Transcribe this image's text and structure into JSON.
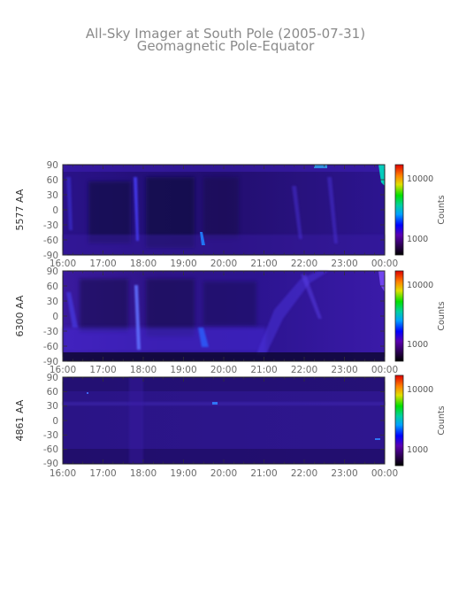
{
  "title": "All-Sky Imager at South Pole (2005-07-31)",
  "subtitle": "Geomagnetic Pole-Equator",
  "colorbar_label": "Counts",
  "colorbar_ticks": [
    "10000",
    "1000"
  ],
  "chart_data": [
    {
      "type": "heatmap",
      "ylabel": "5577 AA",
      "y_ticks": [
        90,
        60,
        30,
        0,
        -30,
        -60,
        -90
      ],
      "x_ticks": [
        "16:00",
        "17:00",
        "18:00",
        "19:00",
        "20:00",
        "21:00",
        "22:00",
        "23:00",
        "00:00"
      ],
      "ylim": [
        -90,
        90
      ],
      "colorbar_label": "Counts",
      "colorbar_ticks": [
        10000,
        1000
      ],
      "features": [
        {
          "time": "17:45",
          "lat_min": -70,
          "lat_max": 70
        },
        {
          "time": "19:30",
          "lat_min": -75,
          "lat_max": -62
        },
        {
          "time": "23:55",
          "lat_min": 40,
          "lat_max": 90
        }
      ]
    },
    {
      "type": "heatmap",
      "ylabel": "6300 AA",
      "y_ticks": [
        90,
        60,
        30,
        0,
        -30,
        -60,
        -90
      ],
      "x_ticks": [
        "16:00",
        "17:00",
        "18:00",
        "19:00",
        "20:00",
        "21:00",
        "22:00",
        "23:00",
        "00:00"
      ],
      "ylim": [
        -90,
        90
      ],
      "colorbar_label": "Counts",
      "colorbar_ticks": [
        10000,
        1000
      ],
      "features": [
        {
          "time": "17:50",
          "lat_min": -60,
          "lat_max": 60
        },
        {
          "time": "19:30",
          "lat_min": -70,
          "lat_max": -50
        },
        {
          "time": "21:00",
          "lat_min": -80,
          "lat_max": 90
        }
      ]
    },
    {
      "type": "heatmap",
      "ylabel": "4861 AA",
      "y_ticks": [
        90,
        60,
        30,
        0,
        -30,
        -60,
        -90
      ],
      "x_ticks": [
        "16:00",
        "17:00",
        "18:00",
        "19:00",
        "20:00",
        "21:00",
        "22:00",
        "23:00",
        "00:00"
      ],
      "ylim": [
        -90,
        90
      ],
      "colorbar_label": "Counts",
      "colorbar_ticks": [
        10000,
        1000
      ],
      "features": [
        {
          "time": "19:45",
          "lat_min": 33,
          "lat_max": 37
        },
        {
          "time": "23:50",
          "lat_min": -40,
          "lat_max": -35
        }
      ]
    }
  ]
}
